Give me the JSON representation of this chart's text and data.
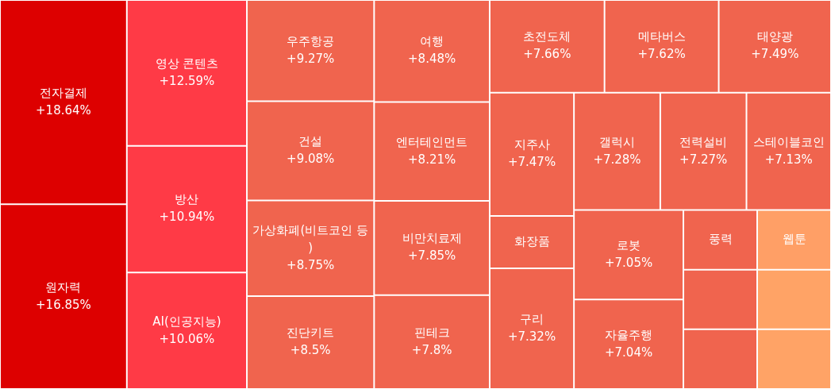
{
  "chart_data": {
    "type": "other",
    "categories": [
      "전자결제",
      "원자력",
      "영상 콘텐츠",
      "방산",
      "AI(인공지능)",
      "우주항공",
      "건설",
      "가상화폐(비트코인 등)",
      "진단키트",
      "여행",
      "엔터테인먼트",
      "비만치료제",
      "핀테크",
      "초전도체",
      "메타버스",
      "태양광",
      "지주사",
      "화장품",
      "구리",
      "갤럭시",
      "전력설비",
      "스테이블코인",
      "로봇",
      "자율주행",
      "풍력",
      "웹툰",
      null,
      null,
      null,
      null
    ],
    "values": [
      18.64,
      16.85,
      12.59,
      10.94,
      10.06,
      9.27,
      9.08,
      8.75,
      8.5,
      8.48,
      8.21,
      7.85,
      7.8,
      7.66,
      7.62,
      7.49,
      7.47,
      null,
      7.32,
      7.28,
      7.27,
      7.13,
      7.05,
      7.04,
      null,
      null,
      null,
      null,
      null,
      null
    ],
    "value_labels": [
      "+18.64%",
      "+16.85%",
      "+12.59%",
      "+10.94%",
      "+10.06%",
      "+9.27%",
      "+9.08%",
      "+8.75%",
      "+8.5%",
      "+8.48%",
      "+8.21%",
      "+7.85%",
      "+7.8%",
      "+7.66%",
      "+7.62%",
      "+7.49%",
      "+7.47%",
      null,
      "+7.32%",
      "+7.28%",
      "+7.27%",
      "+7.13%",
      "+7.05%",
      "+7.04%",
      null,
      null,
      null,
      null,
      null,
      null
    ],
    "colors": [
      "#dd0000",
      "#dd0000",
      "#ff3a46",
      "#ff3a46",
      "#ff3a46",
      "#f0644e",
      "#f0644e",
      "#f0644e",
      "#f0644e",
      "#f0644e",
      "#f0644e",
      "#f0644e",
      "#f0644e",
      "#f0644e",
      "#f0644e",
      "#f0644e",
      "#f0644e",
      "#f0644e",
      "#f0644e",
      "#f0644e",
      "#f0644e",
      "#f0644e",
      "#f0644e",
      "#f0644e",
      "#f0644e",
      "#ff9f66",
      "#f0644e",
      "#f0644e",
      "#ffa366",
      "#ffa366"
    ]
  }
}
